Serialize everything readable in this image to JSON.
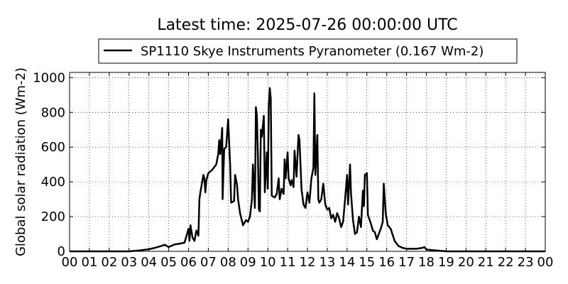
{
  "chart_data": {
    "type": "line",
    "title": "Latest time: 2025-07-26 00:00:00 UTC",
    "ylabel": "Global solar radiation (Wm-2)",
    "grid": true,
    "legend": "upper center",
    "xlim": [
      0,
      24
    ],
    "ylim": [
      0,
      1030
    ],
    "yticks": [
      0,
      200,
      400,
      600,
      800,
      1000
    ],
    "xticks": [
      {
        "value": 0,
        "label": "00"
      },
      {
        "value": 1,
        "label": "01"
      },
      {
        "value": 2,
        "label": "02"
      },
      {
        "value": 3,
        "label": "03"
      },
      {
        "value": 4,
        "label": "04"
      },
      {
        "value": 5,
        "label": "05"
      },
      {
        "value": 6,
        "label": "06"
      },
      {
        "value": 7,
        "label": "07"
      },
      {
        "value": 8,
        "label": "08"
      },
      {
        "value": 9,
        "label": "09"
      },
      {
        "value": 10,
        "label": "10"
      },
      {
        "value": 11,
        "label": "11"
      },
      {
        "value": 12,
        "label": "12"
      },
      {
        "value": 13,
        "label": "13"
      },
      {
        "value": 14,
        "label": "14"
      },
      {
        "value": 15,
        "label": "15"
      },
      {
        "value": 16,
        "label": "16"
      },
      {
        "value": 17,
        "label": "17"
      },
      {
        "value": 18,
        "label": "18"
      },
      {
        "value": 19,
        "label": "19"
      },
      {
        "value": 20,
        "label": "20"
      },
      {
        "value": 21,
        "label": "21"
      },
      {
        "value": 22,
        "label": "22"
      },
      {
        "value": 23,
        "label": "23"
      },
      {
        "value": 24,
        "label": "00"
      }
    ],
    "x": [
      0,
      3,
      3.5,
      4,
      4.3,
      4.6,
      4.8,
      5.0,
      5.3,
      5.6,
      5.8,
      5.9,
      6.0,
      6.05,
      6.1,
      6.2,
      6.3,
      6.4,
      6.5,
      6.55,
      6.6,
      6.75,
      6.8,
      6.85,
      6.9,
      7.0,
      7.2,
      7.4,
      7.5,
      7.55,
      7.6,
      7.7,
      7.72,
      7.8,
      7.9,
      8.0,
      8.1,
      8.15,
      8.3,
      8.35,
      8.45,
      8.5,
      8.6,
      8.75,
      8.9,
      9.0,
      9.1,
      9.2,
      9.25,
      9.35,
      9.4,
      9.45,
      9.5,
      9.55,
      9.6,
      9.65,
      9.7,
      9.8,
      9.85,
      9.95,
      10.0,
      10.05,
      10.1,
      10.15,
      10.2,
      10.35,
      10.45,
      10.55,
      10.6,
      10.7,
      10.8,
      10.85,
      10.9,
      11.0,
      11.05,
      11.15,
      11.2,
      11.3,
      11.35,
      11.45,
      11.55,
      11.6,
      11.7,
      11.8,
      11.9,
      12.0,
      12.1,
      12.2,
      12.3,
      12.35,
      12.4,
      12.5,
      12.55,
      12.6,
      12.7,
      12.8,
      12.9,
      13.0,
      13.1,
      13.2,
      13.3,
      13.4,
      13.5,
      13.6,
      13.7,
      13.8,
      13.9,
      14.0,
      14.05,
      14.15,
      14.2,
      14.3,
      14.4,
      14.5,
      14.6,
      14.7,
      14.8,
      14.85,
      14.9,
      15.0,
      15.05,
      15.2,
      15.3,
      15.4,
      15.5,
      15.6,
      15.7,
      15.8,
      15.85,
      15.95,
      16.05,
      16.2,
      16.4,
      16.6,
      16.8,
      17.0,
      17.2,
      17.5,
      17.8,
      17.9,
      18.0,
      18.5,
      19.0,
      24
    ],
    "series": [
      {
        "name": "SP1110 Skye Instruments Pyranometer (0.167 Wm-2)",
        "color": "#000000",
        "values": [
          0,
          0,
          5,
          12,
          20,
          30,
          38,
          25,
          40,
          45,
          50,
          90,
          130,
          60,
          150,
          80,
          60,
          120,
          90,
          300,
          340,
          440,
          420,
          340,
          410,
          450,
          470,
          500,
          560,
          640,
          560,
          710,
          300,
          590,
          600,
          760,
          500,
          280,
          290,
          440,
          380,
          300,
          220,
          150,
          180,
          170,
          200,
          300,
          500,
          250,
          830,
          780,
          560,
          240,
          230,
          700,
          660,
          780,
          340,
          570,
          360,
          830,
          940,
          880,
          320,
          310,
          330,
          420,
          300,
          360,
          330,
          530,
          420,
          570,
          420,
          380,
          410,
          370,
          580,
          430,
          670,
          640,
          360,
          270,
          250,
          340,
          280,
          420,
          480,
          910,
          440,
          670,
          300,
          280,
          300,
          390,
          270,
          240,
          250,
          190,
          210,
          170,
          220,
          190,
          140,
          170,
          300,
          440,
          270,
          500,
          330,
          180,
          100,
          110,
          200,
          140,
          350,
          260,
          440,
          450,
          210,
          160,
          120,
          110,
          70,
          100,
          130,
          170,
          390,
          220,
          150,
          130,
          60,
          30,
          20,
          15,
          15,
          15,
          20,
          25,
          10,
          5,
          0,
          0
        ]
      }
    ]
  }
}
